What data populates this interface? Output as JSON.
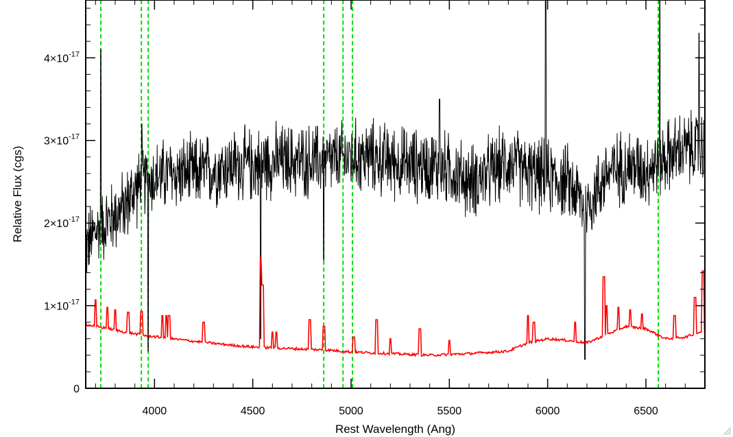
{
  "chart_data": {
    "type": "line",
    "title": "",
    "xlabel": "Rest Wavelength (Ang)",
    "ylabel": "Relative Flux (cgs)",
    "xlim": [
      3650,
      6800
    ],
    "ylim": [
      0,
      4.7e-17
    ],
    "x_ticks": [
      4000,
      4500,
      5000,
      5500,
      6000,
      6500
    ],
    "x_tick_labels": [
      "4000",
      "4500",
      "5000",
      "5500",
      "6000",
      "6500"
    ],
    "y_ticks": [
      0,
      1e-17,
      2e-17,
      3e-17,
      4e-17
    ],
    "y_tick_labels": [
      {
        "mantissa": "0",
        "exponent": ""
      },
      {
        "mantissa": "1×10",
        "exponent": "-17"
      },
      {
        "mantissa": "2×10",
        "exponent": "-17"
      },
      {
        "mantissa": "3×10",
        "exponent": "-17"
      },
      {
        "mantissa": "4×10",
        "exponent": "-17"
      }
    ],
    "grid": false,
    "vertical_lines": {
      "color": "#00dd00",
      "style": "dashed",
      "x": [
        3727,
        3933,
        3968,
        4861,
        4959,
        5007,
        6563
      ]
    },
    "series": [
      {
        "color": "#000000",
        "style": "noisy",
        "x": [
          3650,
          3700,
          3750,
          3800,
          3850,
          3900,
          3950,
          4000,
          4100,
          4200,
          4300,
          4400,
          4500,
          4600,
          4700,
          4800,
          4900,
          5000,
          5100,
          5200,
          5300,
          5400,
          5500,
          5600,
          5700,
          5800,
          5900,
          6000,
          6100,
          6200,
          6300,
          6400,
          6500,
          6600,
          6700,
          6800
        ],
        "y": [
          1.7e-17,
          1.9e-17,
          2e-17,
          2.1e-17,
          2.2e-17,
          2.4e-17,
          2.5e-17,
          2.55e-17,
          2.6e-17,
          2.6e-17,
          2.65e-17,
          2.7e-17,
          2.7e-17,
          2.75e-17,
          2.75e-17,
          2.75e-17,
          2.75e-17,
          2.8e-17,
          2.8e-17,
          2.75e-17,
          2.7e-17,
          2.7e-17,
          2.65e-17,
          2.5e-17,
          2.6e-17,
          2.75e-17,
          2.6e-17,
          2.55e-17,
          2.5e-17,
          2.2e-17,
          2.6e-17,
          2.7e-17,
          2.65e-17,
          2.8e-17,
          2.9e-17,
          2.9e-17
        ],
        "noise": 4.5e-18,
        "spikes": [
          {
            "x": 3727,
            "y": 4.1e-17
          },
          {
            "x": 3935,
            "y": 3.2e-17
          },
          {
            "x": 3968,
            "y": 4.5e-18
          },
          {
            "x": 4540,
            "y": 4.7e-17
          },
          {
            "x": 4540,
            "y": 6e-18
          },
          {
            "x": 4860,
            "y": 1.55e-17
          },
          {
            "x": 5450,
            "y": 3.5e-17
          },
          {
            "x": 5990,
            "y": 4.7e-17
          },
          {
            "x": 6190,
            "y": 3.5e-18
          },
          {
            "x": 6570,
            "y": 4.7e-17
          },
          {
            "x": 6770,
            "y": 4.3e-17
          }
        ]
      },
      {
        "color": "#ff0000",
        "style": "smooth",
        "x": [
          3650,
          3750,
          3850,
          3950,
          4050,
          4200,
          4400,
          4500,
          4700,
          4900,
          5000,
          5200,
          5400,
          5600,
          5800,
          5900,
          6000,
          6100,
          6200,
          6300,
          6400,
          6500,
          6600,
          6700,
          6800
        ],
        "y": [
          7.7e-18,
          7.3e-18,
          6.8e-18,
          6.4e-18,
          6.1e-18,
          5.7e-18,
          5.2e-18,
          5e-18,
          4.8e-18,
          4.6e-18,
          4.4e-18,
          4.2e-18,
          4e-18,
          4.2e-18,
          4.5e-18,
          5.5e-18,
          6e-18,
          5.8e-18,
          5.5e-18,
          6.5e-18,
          7.5e-18,
          7.2e-18,
          6e-18,
          6.2e-18,
          7e-18
        ],
        "lines": [
          {
            "x": 3700,
            "y": 1.07e-17
          },
          {
            "x": 3760,
            "y": 9.8e-18
          },
          {
            "x": 3800,
            "y": 9.5e-18
          },
          {
            "x": 3865,
            "y": 9.2e-18
          },
          {
            "x": 3935,
            "y": 9.3e-18
          },
          {
            "x": 4040,
            "y": 8.8e-18
          },
          {
            "x": 4060,
            "y": 8.8e-18
          },
          {
            "x": 4075,
            "y": 8.8e-18
          },
          {
            "x": 4250,
            "y": 8e-18
          },
          {
            "x": 4540,
            "y": 1.58e-17
          },
          {
            "x": 4550,
            "y": 1.25e-17
          },
          {
            "x": 4600,
            "y": 6.8e-18
          },
          {
            "x": 4620,
            "y": 6.8e-18
          },
          {
            "x": 4790,
            "y": 8.3e-18
          },
          {
            "x": 4862,
            "y": 7.5e-18
          },
          {
            "x": 5015,
            "y": 6.2e-18
          },
          {
            "x": 5130,
            "y": 8.3e-18
          },
          {
            "x": 5200,
            "y": 6e-18
          },
          {
            "x": 5350,
            "y": 7.2e-18
          },
          {
            "x": 5500,
            "y": 5.8e-18
          },
          {
            "x": 5900,
            "y": 8.8e-18
          },
          {
            "x": 5930,
            "y": 8e-18
          },
          {
            "x": 6140,
            "y": 8e-18
          },
          {
            "x": 6285,
            "y": 1.35e-17
          },
          {
            "x": 6300,
            "y": 1e-17
          },
          {
            "x": 6360,
            "y": 9.8e-18
          },
          {
            "x": 6420,
            "y": 9.5e-18
          },
          {
            "x": 6480,
            "y": 9e-18
          },
          {
            "x": 6645,
            "y": 8.8e-18
          },
          {
            "x": 6750,
            "y": 1.1e-17
          },
          {
            "x": 6790,
            "y": 1.42e-17
          }
        ]
      }
    ]
  }
}
